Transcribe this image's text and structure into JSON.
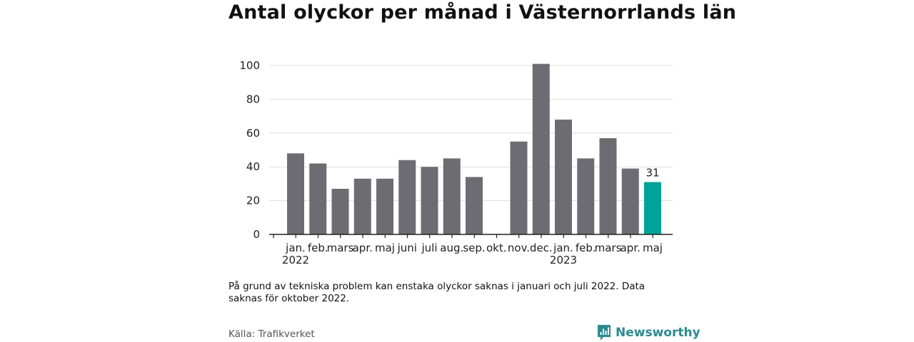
{
  "title": "Antal olyckor per månad i Västernorrlands län",
  "note": "På grund av tekniska problem kan enstaka olyckor saknas i januari och juli 2022. Data saknas för oktober 2022.",
  "source": "Källa: Trafikverket",
  "brand": {
    "name": "Newsworthy"
  },
  "colors": {
    "bar": "#6d6c72",
    "highlight": "#00a398",
    "grid": "#dddddd",
    "axis": "#222222",
    "brand": "#2a8a8f"
  },
  "chart_data": {
    "type": "bar",
    "categories": [
      "jan.",
      "feb.",
      "mars",
      "apr.",
      "maj",
      "juni",
      "juli",
      "aug.",
      "sep.",
      "okt.",
      "nov.",
      "dec.",
      "jan.",
      "feb.",
      "mars",
      "apr.",
      "maj"
    ],
    "year_labels": [
      {
        "category_index": 0,
        "label": "2022"
      },
      {
        "category_index": 12,
        "label": "2023"
      }
    ],
    "values": [
      48,
      42,
      27,
      33,
      33,
      44,
      40,
      45,
      34,
      null,
      55,
      101,
      68,
      45,
      57,
      39,
      31
    ],
    "highlight_index": 16,
    "data_labels": [
      {
        "index": 16,
        "label": "31"
      }
    ],
    "yticks": [
      0,
      20,
      40,
      60,
      80,
      100
    ],
    "ylim": [
      0,
      101
    ],
    "grid": true
  }
}
